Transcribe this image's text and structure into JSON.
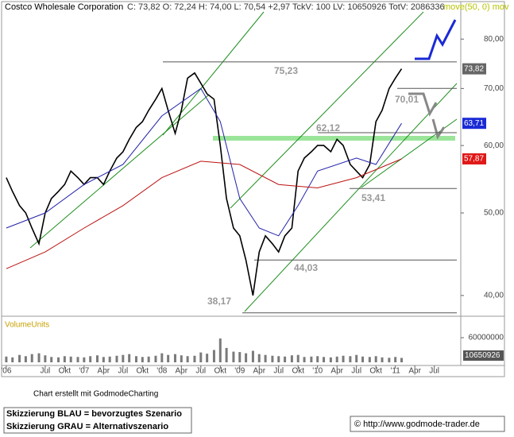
{
  "chart_data": [
    {
      "type": "line",
      "title": "Costco Wholesale Corporation",
      "header": "C: 73,82 O: 72,24 H: 74,00 L: 70,54 +2,97 TckV: 100 LV: 10650926 TotV: 2086336",
      "indicator_label": "move(50, 0) mov",
      "log_y": true,
      "xlim": [
        2005.95,
        2011.82
      ],
      "ylim": [
        37.9,
        86.1
      ],
      "xticks": [
        {
          "value": 2006.0,
          "label": "'06"
        },
        {
          "value": 2006.5,
          "label": "Jul"
        },
        {
          "value": 2006.75,
          "label": "Okt"
        },
        {
          "value": 2007.0,
          "label": "'07"
        },
        {
          "value": 2007.25,
          "label": "Apr"
        },
        {
          "value": 2007.5,
          "label": "Jul"
        },
        {
          "value": 2007.75,
          "label": "Okt"
        },
        {
          "value": 2008.0,
          "label": "'08"
        },
        {
          "value": 2008.25,
          "label": "Apr"
        },
        {
          "value": 2008.5,
          "label": "Jul"
        },
        {
          "value": 2008.75,
          "label": "Okt"
        },
        {
          "value": 2009.0,
          "label": "'09"
        },
        {
          "value": 2009.25,
          "label": "Apr"
        },
        {
          "value": 2009.5,
          "label": "Jul"
        },
        {
          "value": 2009.75,
          "label": "Okt"
        },
        {
          "value": 2010.0,
          "label": "'10"
        },
        {
          "value": 2010.25,
          "label": "Apr"
        },
        {
          "value": 2010.5,
          "label": "Jul"
        },
        {
          "value": 2010.75,
          "label": "Okt"
        },
        {
          "value": 2011.0,
          "label": "'11"
        },
        {
          "value": 2011.25,
          "label": "Apr"
        },
        {
          "value": 2011.5,
          "label": "Jul"
        }
      ],
      "yticks": [
        {
          "value": 40,
          "label": "40,00"
        },
        {
          "value": 50,
          "label": "50,00"
        },
        {
          "value": 60,
          "label": "60,00"
        },
        {
          "value": 70,
          "label": "70,00"
        },
        {
          "value": 80,
          "label": "80,00"
        }
      ],
      "series": [
        {
          "color": "#000000",
          "x": [
            2006.0,
            2006.08,
            2006.17,
            2006.25,
            2006.33,
            2006.42,
            2006.5,
            2006.58,
            2006.67,
            2006.75,
            2006.83,
            2006.92,
            2007.0,
            2007.08,
            2007.17,
            2007.25,
            2007.33,
            2007.42,
            2007.5,
            2007.58,
            2007.67,
            2007.75,
            2007.83,
            2007.92,
            2008.0,
            2008.08,
            2008.17,
            2008.25,
            2008.33,
            2008.42,
            2008.5,
            2008.58,
            2008.67,
            2008.75,
            2008.83,
            2008.92,
            2009.0,
            2009.08,
            2009.17,
            2009.25,
            2009.33,
            2009.42,
            2009.5,
            2009.58,
            2009.67,
            2009.75,
            2009.83,
            2009.92,
            2010.0,
            2010.08,
            2010.17,
            2010.25,
            2010.33,
            2010.42,
            2010.5,
            2010.58,
            2010.67,
            2010.75,
            2010.83,
            2010.92,
            2011.0,
            2011.08
          ],
          "values": [
            55,
            53,
            51,
            50,
            48,
            46,
            50,
            52,
            53,
            54,
            56,
            55,
            54,
            55,
            55,
            54,
            56,
            58,
            59,
            61,
            63,
            64,
            66,
            68,
            70,
            66,
            62,
            66,
            72,
            73,
            71,
            69,
            68,
            60,
            52,
            48,
            47,
            44,
            40,
            45,
            47,
            46,
            45,
            47,
            48,
            56,
            58,
            59,
            60,
            60,
            59,
            61,
            60,
            57,
            56,
            55,
            57,
            64,
            66,
            70,
            72,
            73.82
          ]
        },
        {
          "color": "#2222aa",
          "x": [
            2006.0,
            2006.5,
            2007.0,
            2007.5,
            2008.0,
            2008.5,
            2008.75,
            2009.0,
            2009.25,
            2009.5,
            2009.75,
            2010.0,
            2010.5,
            2010.75,
            2011.08
          ],
          "values": [
            48,
            50,
            54,
            57,
            65,
            70,
            64,
            52,
            48,
            47,
            51,
            56,
            58,
            57,
            63.71
          ]
        },
        {
          "color": "#bb1111",
          "x": [
            2006.0,
            2006.5,
            2007.0,
            2007.5,
            2008.0,
            2008.5,
            2009.0,
            2009.5,
            2010.0,
            2010.5,
            2011.08
          ],
          "values": [
            43,
            45,
            48,
            51,
            55,
            57.5,
            57,
            54,
            53.5,
            55,
            57.87
          ]
        }
      ],
      "last_labels": [
        {
          "value": 73.82,
          "label": "73,82",
          "color": "#666666"
        },
        {
          "value": 63.71,
          "label": "63,71",
          "color": "#1a2ad6"
        },
        {
          "value": 57.87,
          "label": "57,87",
          "color": "#e01818"
        }
      ],
      "levels": [
        {
          "value": 75.23,
          "label": "75,23"
        },
        {
          "value": 70.01,
          "label": "70,01"
        },
        {
          "value": 62.12,
          "label": "62,12"
        },
        {
          "value": 53.41,
          "label": "53,41"
        },
        {
          "value": 44.03,
          "label": "44,03"
        },
        {
          "value": 38.17,
          "label": "38,17"
        }
      ]
    },
    {
      "type": "bar",
      "title": "VolumeUnits",
      "ylim": [
        0,
        102600000
      ],
      "yticks": [
        60000000
      ],
      "x": [
        2006.0,
        2006.08,
        2006.17,
        2006.25,
        2006.33,
        2006.42,
        2006.5,
        2006.58,
        2006.67,
        2006.75,
        2006.83,
        2006.92,
        2007.0,
        2007.08,
        2007.17,
        2007.25,
        2007.33,
        2007.42,
        2007.5,
        2007.58,
        2007.67,
        2007.75,
        2007.83,
        2007.92,
        2008.0,
        2008.08,
        2008.17,
        2008.25,
        2008.33,
        2008.42,
        2008.5,
        2008.58,
        2008.67,
        2008.75,
        2008.83,
        2008.92,
        2009.0,
        2009.08,
        2009.17,
        2009.25,
        2009.33,
        2009.42,
        2009.5,
        2009.58,
        2009.67,
        2009.75,
        2009.83,
        2009.92,
        2010.0,
        2010.08,
        2010.17,
        2010.25,
        2010.33,
        2010.42,
        2010.5,
        2010.58,
        2010.67,
        2010.75,
        2010.83,
        2010.92,
        2011.0,
        2011.08
      ],
      "values": [
        14000000,
        12000000,
        18000000,
        15000000,
        20000000,
        22000000,
        17000000,
        13000000,
        12000000,
        15000000,
        14000000,
        13000000,
        12000000,
        15000000,
        17000000,
        13000000,
        14000000,
        16000000,
        18000000,
        20000000,
        15000000,
        13000000,
        14000000,
        16000000,
        22000000,
        18000000,
        20000000,
        17000000,
        15000000,
        16000000,
        24000000,
        21000000,
        30000000,
        58000000,
        35000000,
        26000000,
        25000000,
        22000000,
        28000000,
        20000000,
        18000000,
        16000000,
        15000000,
        14000000,
        17000000,
        18000000,
        13000000,
        14000000,
        15000000,
        13000000,
        12000000,
        14000000,
        16000000,
        15000000,
        18000000,
        14000000,
        13000000,
        15000000,
        12000000,
        11000000,
        13000000,
        10650926
      ],
      "last_label": "10650926",
      "color": "#7a7a7a"
    }
  ],
  "footer": {
    "credit": "Chart erstellt mit GodmodeCharting",
    "legend_blue": "Skizzierung BLAU = bevorzugtes Szenario",
    "legend_gray": "Skizzierung GRAU = Alternativszenario",
    "source": "© http://www.godmode-trader.de"
  }
}
